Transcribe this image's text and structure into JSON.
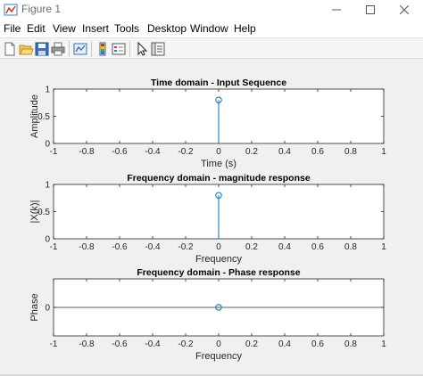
{
  "window": {
    "title": "Figure 1",
    "icon": "matlab-figure-icon",
    "controls": [
      "minimize-icon",
      "maximize-icon",
      "close-icon"
    ]
  },
  "menu": [
    "File",
    "Edit",
    "View",
    "Insert",
    "Tools",
    "Desktop",
    "Window",
    "Help"
  ],
  "toolbar": {
    "buttons": [
      "new-figure-icon",
      "open-file-icon",
      "save-icon",
      "print-icon",
      "link-plot-icon",
      "insert-colorbar-icon",
      "insert-legend-icon",
      "edit-plot-icon",
      "property-inspector-icon"
    ]
  },
  "colors": {
    "stem": "#0072bd",
    "axes_bg": "#ffffff",
    "figure_bg": "#f0f0f0"
  },
  "chart_data": [
    {
      "type": "stem",
      "title": "Time domain - Input Sequence",
      "xlabel": "Time (s)",
      "ylabel": "Amplitude",
      "xlim": [
        -1,
        1
      ],
      "ylim": [
        0,
        1
      ],
      "xticks": [
        "-1",
        "-0.8",
        "-0.6",
        "-0.4",
        "-0.2",
        "0",
        "0.2",
        "0.4",
        "0.6",
        "0.8",
        "1"
      ],
      "yticks": [
        "0",
        "0.5",
        "1"
      ],
      "x": [
        0
      ],
      "y": [
        0.8
      ]
    },
    {
      "type": "stem",
      "title": "Frequency domain - magnitude response",
      "xlabel": "Frequency",
      "ylabel": "|X(k)|",
      "xlim": [
        -1,
        1
      ],
      "ylim": [
        0,
        1
      ],
      "xticks": [
        "-1",
        "-0.8",
        "-0.6",
        "-0.4",
        "-0.2",
        "0",
        "0.2",
        "0.4",
        "0.6",
        "0.8",
        "1"
      ],
      "yticks": [
        "0",
        "0.5",
        "1"
      ],
      "x": [
        0
      ],
      "y": [
        0.8
      ]
    },
    {
      "type": "stem",
      "title": "Frequency domain - Phase response",
      "xlabel": "Frequency",
      "ylabel": "Phase",
      "xlim": [
        -1,
        1
      ],
      "ylim": [
        -1,
        1
      ],
      "xticks": [
        "-1",
        "-0.8",
        "-0.6",
        "-0.4",
        "-0.2",
        "0",
        "0.2",
        "0.4",
        "0.6",
        "0.8",
        "1"
      ],
      "yticks": [
        "0"
      ],
      "x": [
        0
      ],
      "y": [
        0
      ],
      "baseline": 0
    }
  ]
}
